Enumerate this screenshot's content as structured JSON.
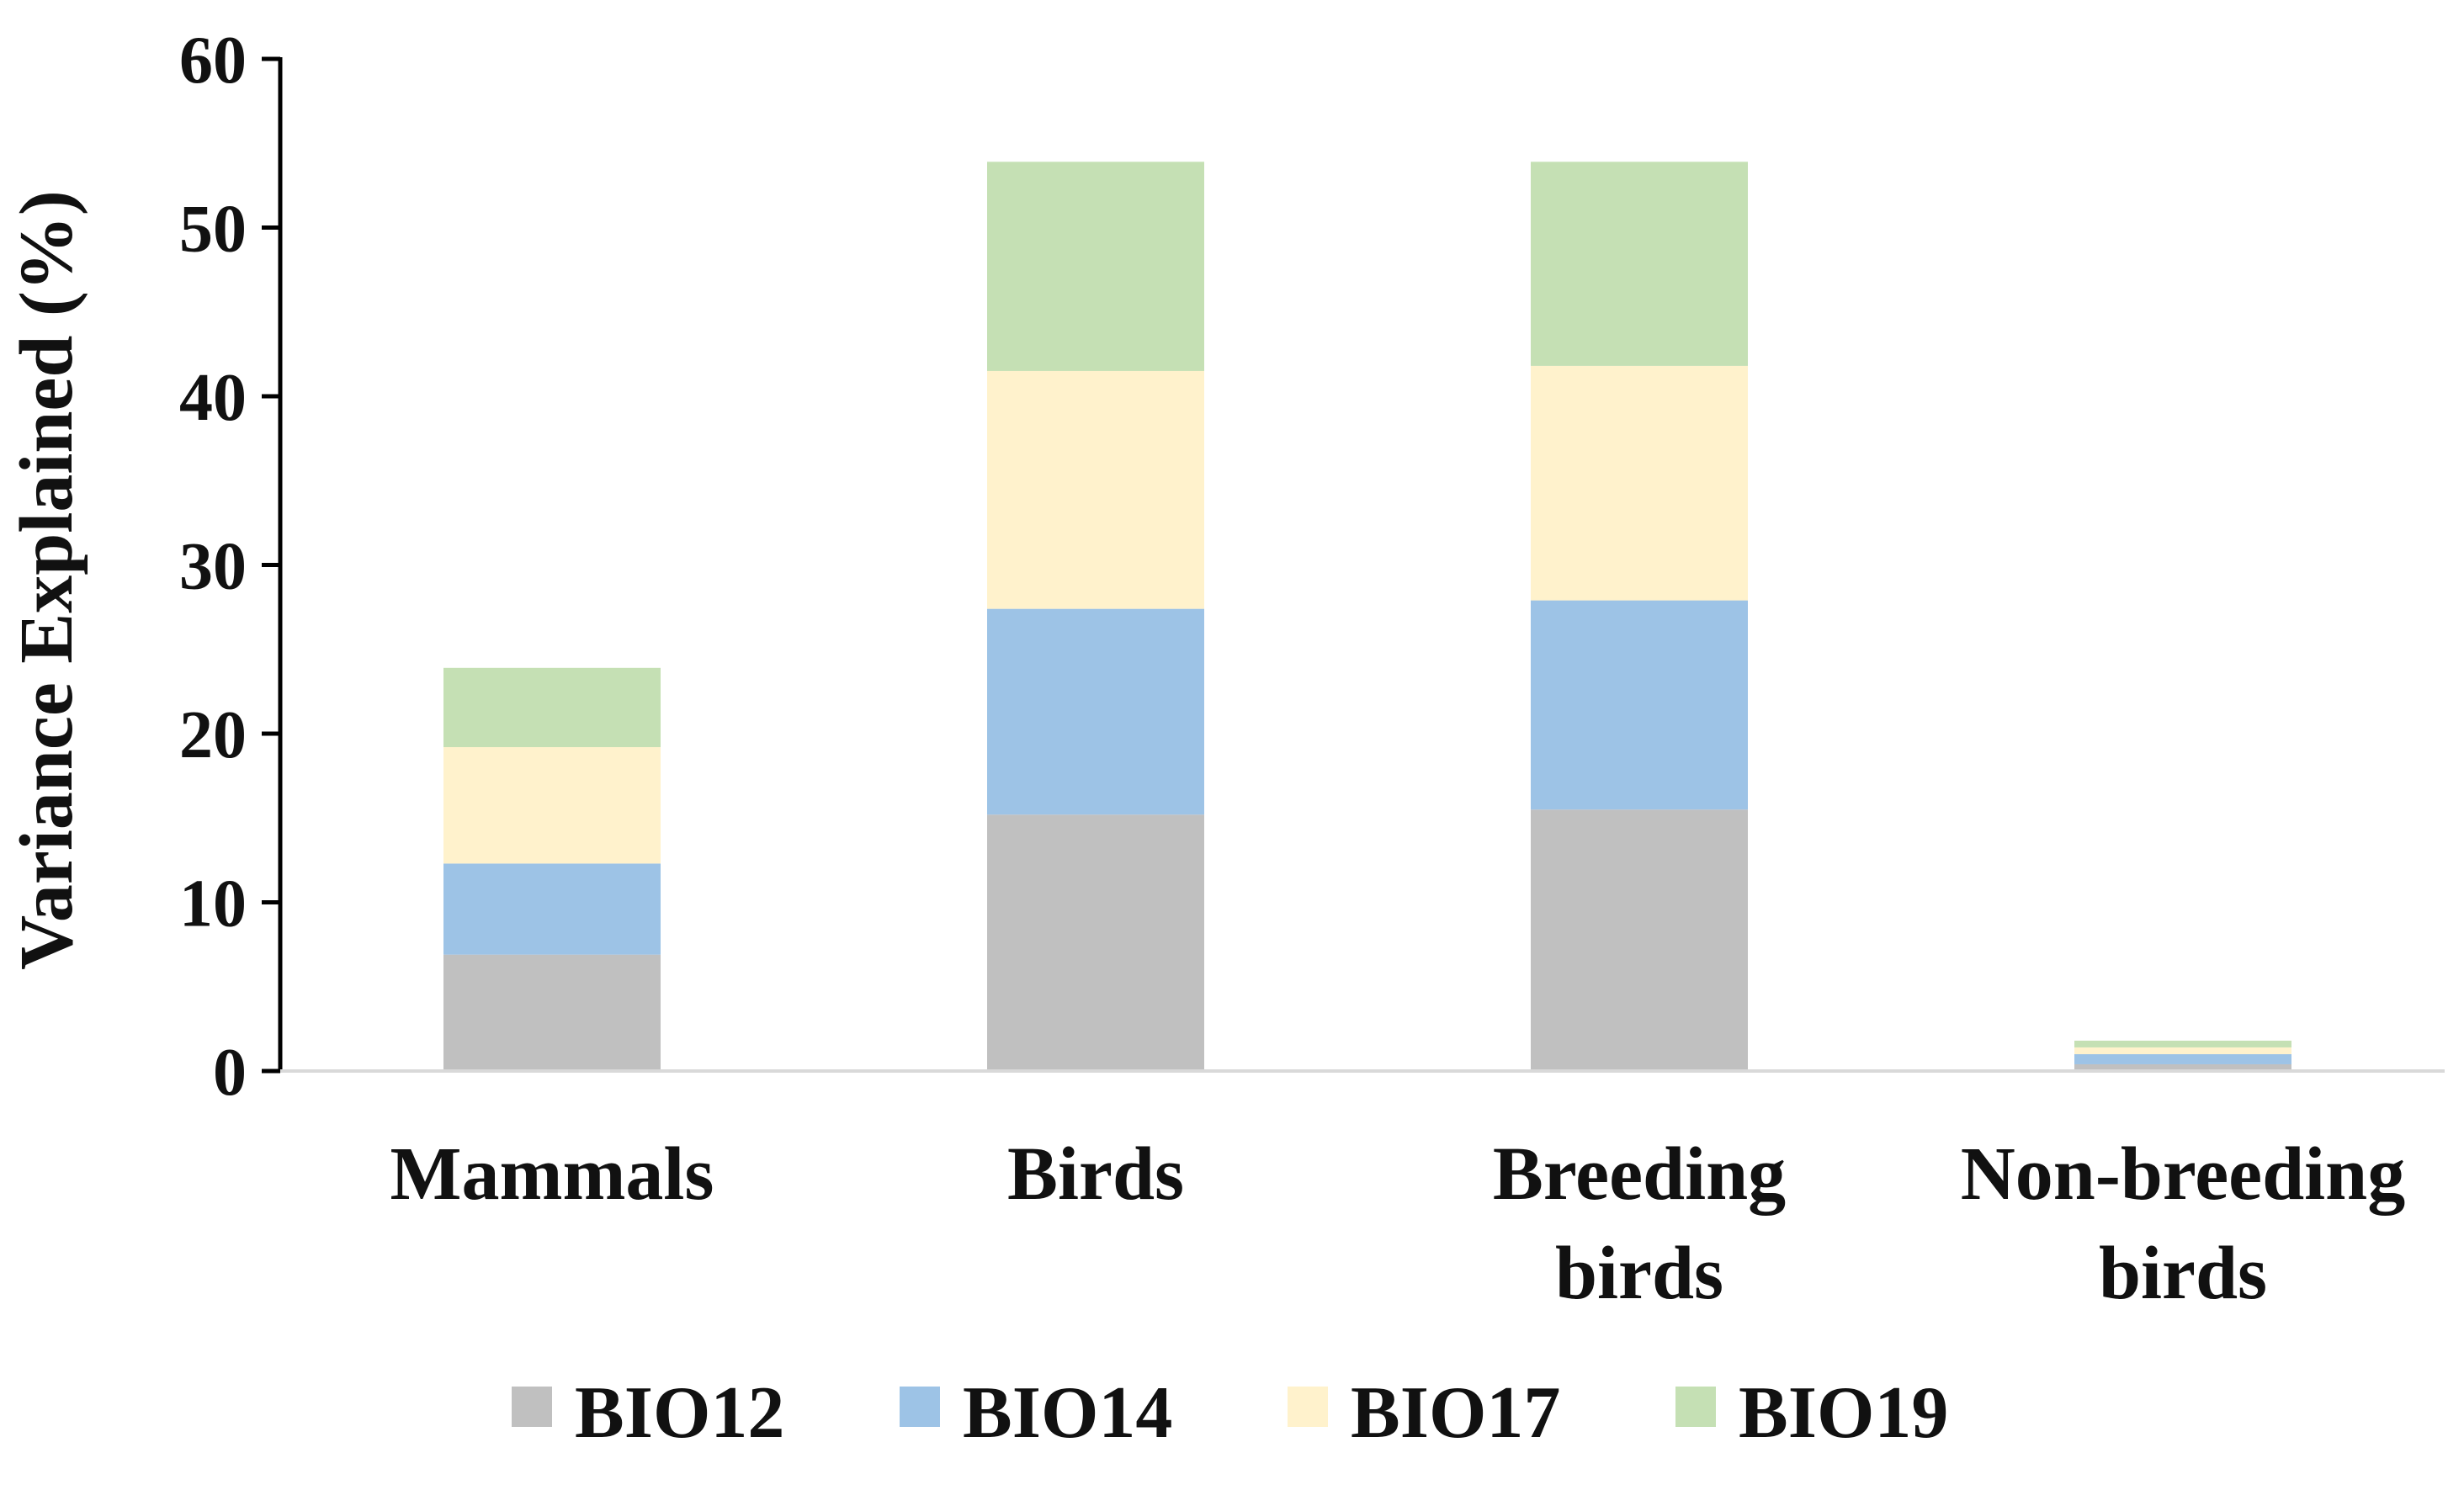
{
  "chart_data": {
    "type": "bar",
    "stacked": true,
    "title": "",
    "xlabel": "",
    "ylabel": "Variance Explained (%)",
    "ylim": [
      0,
      60
    ],
    "yticks": [
      0,
      10,
      20,
      30,
      40,
      50,
      60
    ],
    "grid": false,
    "legend_position": "bottom",
    "categories": [
      [
        "Mammals"
      ],
      [
        "Birds"
      ],
      [
        "Breeding",
        "birds"
      ],
      [
        "Non-breeding",
        "birds"
      ]
    ],
    "series": [
      {
        "name": "BIO12",
        "color": "#c0c0c0",
        "values": [
          6.9,
          15.2,
          15.5,
          0.4
        ]
      },
      {
        "name": "BIO14",
        "color": "#9dc3e6",
        "values": [
          5.4,
          12.2,
          12.4,
          0.6
        ]
      },
      {
        "name": "BIO17",
        "color": "#fff2cc",
        "values": [
          6.9,
          14.1,
          13.9,
          0.4
        ]
      },
      {
        "name": "BIO19",
        "color": "#c5e0b4",
        "values": [
          4.7,
          12.4,
          12.1,
          0.4
        ]
      }
    ]
  }
}
